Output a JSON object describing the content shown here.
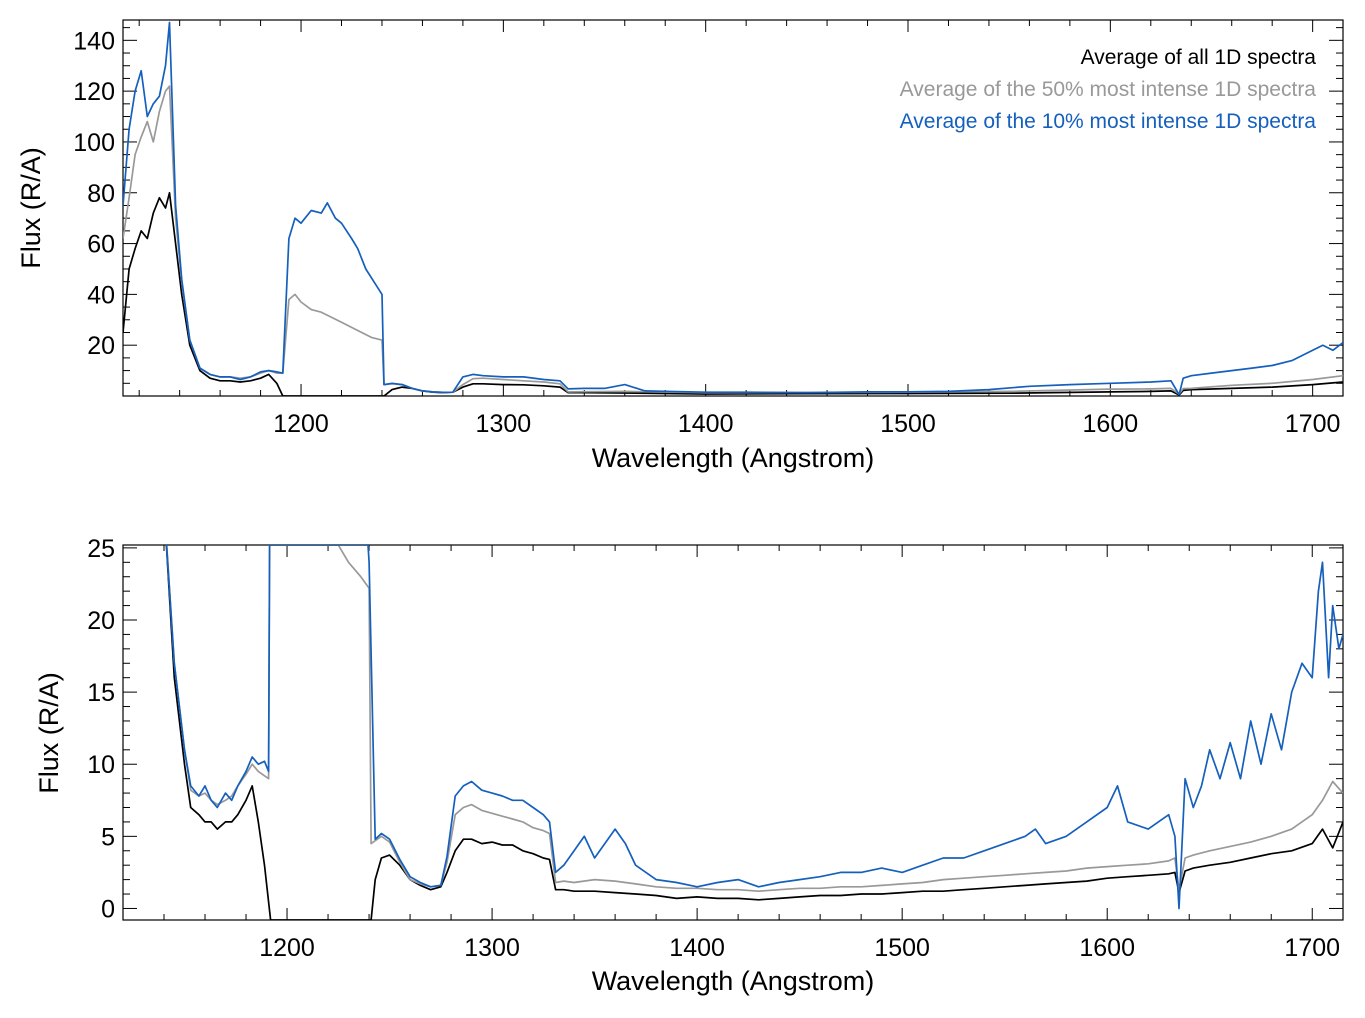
{
  "chart_data": [
    {
      "type": "line",
      "xlabel": "Wavelength (Angstrom)",
      "ylabel": "Flux (R/A)",
      "xlim": [
        1112,
        1715
      ],
      "ylim": [
        0,
        148
      ],
      "xticks": [
        1200,
        1300,
        1400,
        1500,
        1600,
        1700
      ],
      "yticks": [
        20,
        40,
        60,
        80,
        100,
        120,
        140
      ],
      "legend": "top-right",
      "grid": false,
      "series": [
        {
          "name": "Average of all 1D spectra",
          "color": "#000000",
          "x": [
            1112,
            1115,
            1118,
            1121,
            1124,
            1127,
            1130,
            1133,
            1135,
            1138,
            1141,
            1145,
            1150,
            1155,
            1160,
            1165,
            1170,
            1175,
            1180,
            1184,
            1188,
            1191,
            1241,
            1245,
            1250,
            1255,
            1260,
            1265,
            1270,
            1275,
            1280,
            1285,
            1290,
            1300,
            1310,
            1320,
            1328,
            1332,
            1340,
            1360,
            1400,
            1450,
            1500,
            1550,
            1600,
            1620,
            1630,
            1634,
            1636,
            1640,
            1660,
            1680,
            1700,
            1715
          ],
          "y": [
            25,
            50,
            58,
            65,
            62,
            72,
            78,
            74,
            80,
            60,
            40,
            20,
            10,
            7,
            6,
            6,
            5.5,
            6,
            7,
            8.5,
            5,
            0,
            0,
            2.5,
            3.5,
            3,
            2,
            1.5,
            1.3,
            1.5,
            3.5,
            4.8,
            4.8,
            4.5,
            4.4,
            4,
            3.5,
            1.3,
            1.3,
            1.2,
            0.8,
            0.9,
            1,
            1.1,
            1.6,
            1.8,
            2,
            0.4,
            2.2,
            2.5,
            3,
            3.5,
            4.5,
            5.5
          ]
        },
        {
          "name": "Average of the 50% most intense 1D spectra",
          "color": "#999999",
          "x": [
            1112,
            1115,
            1118,
            1121,
            1124,
            1127,
            1130,
            1133,
            1135,
            1138,
            1141,
            1145,
            1150,
            1155,
            1160,
            1165,
            1170,
            1175,
            1180,
            1184,
            1188,
            1191,
            1194,
            1197,
            1200,
            1205,
            1210,
            1215,
            1220,
            1225,
            1230,
            1235,
            1240,
            1241,
            1245,
            1250,
            1255,
            1260,
            1265,
            1270,
            1275,
            1280,
            1285,
            1290,
            1300,
            1310,
            1320,
            1328,
            1332,
            1340,
            1360,
            1400,
            1450,
            1500,
            1550,
            1600,
            1620,
            1630,
            1634,
            1636,
            1640,
            1660,
            1680,
            1700,
            1715
          ],
          "y": [
            62,
            78,
            95,
            102,
            108,
            100,
            112,
            120,
            122,
            70,
            45,
            22,
            11,
            8.5,
            7.5,
            7.5,
            7,
            7.5,
            9,
            10,
            9,
            9,
            38,
            40,
            37,
            34,
            33,
            31,
            29,
            27,
            25,
            23,
            22,
            4.5,
            4.8,
            4.5,
            3,
            2,
            1.6,
            1.4,
            1.5,
            4.5,
            6.8,
            7,
            6.5,
            6,
            5.5,
            4.8,
            1.6,
            1.7,
            1.8,
            1.3,
            1.4,
            1.5,
            1.8,
            2.7,
            2.8,
            3,
            0.8,
            2.9,
            3,
            4.2,
            5,
            6.5,
            8
          ]
        },
        {
          "name": "Average of the 10% most intense 1D spectra",
          "color": "#1560BD",
          "x": [
            1112,
            1115,
            1118,
            1121,
            1124,
            1127,
            1130,
            1133,
            1135,
            1138,
            1141,
            1145,
            1150,
            1155,
            1160,
            1165,
            1170,
            1175,
            1180,
            1184,
            1188,
            1191,
            1194,
            1197,
            1200,
            1205,
            1210,
            1213,
            1217,
            1220,
            1225,
            1228,
            1232,
            1236,
            1240,
            1241,
            1245,
            1250,
            1255,
            1260,
            1265,
            1270,
            1275,
            1280,
            1285,
            1290,
            1300,
            1310,
            1320,
            1328,
            1332,
            1340,
            1350,
            1360,
            1370,
            1380,
            1400,
            1420,
            1450,
            1480,
            1500,
            1520,
            1540,
            1560,
            1580,
            1600,
            1620,
            1630,
            1634,
            1636,
            1640,
            1650,
            1660,
            1670,
            1680,
            1690,
            1700,
            1705,
            1710,
            1715
          ],
          "y": [
            75,
            105,
            120,
            128,
            110,
            115,
            118,
            130,
            147,
            75,
            46,
            22,
            11,
            8.5,
            7.5,
            7.5,
            6.5,
            7.5,
            9.5,
            10,
            9.5,
            9,
            62,
            70,
            68,
            73,
            72,
            76,
            70,
            68,
            62,
            58,
            50,
            45,
            40,
            4.5,
            5,
            4.5,
            3,
            2,
            1.6,
            1.4,
            1.5,
            7.5,
            8.5,
            8,
            7.5,
            7.5,
            6.5,
            6,
            2.8,
            3,
            3,
            4.5,
            2,
            1.8,
            1.5,
            1.5,
            1.3,
            1.6,
            1.6,
            1.8,
            2.5,
            3.8,
            4.5,
            5,
            5.5,
            6,
            0.5,
            7,
            8,
            9,
            10,
            11,
            12,
            14,
            18,
            20,
            18,
            21
          ]
        }
      ]
    },
    {
      "type": "line",
      "xlabel": "Wavelength (Angstrom)",
      "ylabel": "Flux (R/A)",
      "xlim": [
        1120,
        1715
      ],
      "ylim": [
        -0.8,
        25.2
      ],
      "xticks": [
        1200,
        1300,
        1400,
        1500,
        1600,
        1700
      ],
      "yticks": [
        0,
        5,
        10,
        15,
        20,
        25
      ],
      "grid": false,
      "series": [
        {
          "name": "Average of all 1D spectra",
          "color": "#000000",
          "x": [
            1140,
            1145,
            1150,
            1153,
            1157,
            1160,
            1163,
            1166,
            1170,
            1173,
            1176,
            1180,
            1183,
            1186,
            1189,
            1192,
            1241,
            1243,
            1246,
            1250,
            1255,
            1260,
            1265,
            1270,
            1275,
            1278,
            1282,
            1286,
            1290,
            1295,
            1300,
            1305,
            1310,
            1315,
            1320,
            1325,
            1328,
            1331,
            1335,
            1340,
            1350,
            1360,
            1370,
            1380,
            1390,
            1400,
            1410,
            1420,
            1430,
            1440,
            1450,
            1460,
            1470,
            1480,
            1490,
            1500,
            1510,
            1520,
            1530,
            1540,
            1550,
            1560,
            1570,
            1580,
            1590,
            1600,
            1610,
            1620,
            1630,
            1633,
            1635,
            1638,
            1642,
            1650,
            1660,
            1670,
            1680,
            1690,
            1700,
            1705,
            1710,
            1715
          ],
          "y": [
            28,
            16,
            10,
            7,
            6.5,
            6,
            6,
            5.5,
            6,
            6,
            6.5,
            7.5,
            8.5,
            6,
            3,
            -0.8,
            -0.8,
            2,
            3.5,
            3.7,
            3,
            2,
            1.6,
            1.3,
            1.5,
            2.5,
            4,
            4.8,
            4.8,
            4.5,
            4.6,
            4.4,
            4.4,
            4,
            3.8,
            3.5,
            3.4,
            1.3,
            1.3,
            1.2,
            1.2,
            1.1,
            1,
            0.9,
            0.7,
            0.8,
            0.7,
            0.7,
            0.6,
            0.7,
            0.8,
            0.9,
            0.9,
            1,
            1,
            1.1,
            1.2,
            1.2,
            1.3,
            1.4,
            1.5,
            1.6,
            1.7,
            1.8,
            1.9,
            2.1,
            2.2,
            2.3,
            2.4,
            2.5,
            1.1,
            2.6,
            2.8,
            3,
            3.2,
            3.5,
            3.8,
            4,
            4.5,
            5.5,
            4.2,
            6
          ]
        },
        {
          "name": "Average of the 50% most intense 1D spectra",
          "color": "#999999",
          "x": [
            1140,
            1145,
            1150,
            1153,
            1157,
            1160,
            1163,
            1166,
            1170,
            1173,
            1176,
            1180,
            1183,
            1186,
            1189,
            1191,
            1191.5,
            1225,
            1230,
            1236,
            1240,
            1241,
            1243,
            1246,
            1250,
            1255,
            1260,
            1265,
            1270,
            1275,
            1278,
            1282,
            1286,
            1290,
            1295,
            1300,
            1305,
            1310,
            1315,
            1320,
            1325,
            1328,
            1331,
            1335,
            1340,
            1350,
            1360,
            1370,
            1380,
            1390,
            1400,
            1410,
            1420,
            1430,
            1440,
            1450,
            1460,
            1470,
            1480,
            1490,
            1500,
            1510,
            1520,
            1530,
            1540,
            1550,
            1560,
            1570,
            1580,
            1590,
            1600,
            1610,
            1620,
            1630,
            1633,
            1635,
            1638,
            1642,
            1650,
            1660,
            1670,
            1680,
            1690,
            1700,
            1705,
            1710,
            1715
          ],
          "y": [
            28,
            17,
            11,
            8.2,
            7.8,
            8,
            7.5,
            7.2,
            7.5,
            7.8,
            8.5,
            9.3,
            10,
            9.5,
            9.2,
            9,
            25.2,
            25.2,
            24,
            23,
            22.2,
            4.5,
            4.7,
            5,
            4.6,
            3.2,
            2,
            1.7,
            1.5,
            1.6,
            3.2,
            6.5,
            7,
            7.2,
            6.8,
            6.6,
            6.4,
            6.2,
            6,
            5.6,
            5.4,
            5.2,
            1.8,
            1.9,
            1.8,
            2,
            1.9,
            1.7,
            1.5,
            1.4,
            1.4,
            1.3,
            1.3,
            1.2,
            1.3,
            1.4,
            1.4,
            1.5,
            1.5,
            1.6,
            1.7,
            1.8,
            2,
            2.1,
            2.2,
            2.3,
            2.4,
            2.5,
            2.6,
            2.8,
            2.9,
            3,
            3.1,
            3.3,
            3.5,
            1.3,
            3.5,
            3.7,
            4,
            4.3,
            4.6,
            5,
            5.5,
            6.5,
            7.5,
            8.8,
            8
          ]
        },
        {
          "name": "Average of the 10% most intense 1D spectra",
          "color": "#1560BD",
          "x": [
            1140,
            1145,
            1150,
            1153,
            1157,
            1160,
            1163,
            1166,
            1170,
            1173,
            1176,
            1180,
            1183,
            1186,
            1189,
            1191,
            1191.5,
            1239.5,
            1240,
            1243,
            1246,
            1250,
            1255,
            1260,
            1265,
            1270,
            1275,
            1278,
            1282,
            1286,
            1290,
            1295,
            1300,
            1305,
            1310,
            1315,
            1320,
            1325,
            1328,
            1331,
            1335,
            1340,
            1345,
            1350,
            1355,
            1360,
            1365,
            1370,
            1380,
            1390,
            1400,
            1410,
            1420,
            1430,
            1440,
            1450,
            1460,
            1470,
            1480,
            1490,
            1500,
            1510,
            1520,
            1530,
            1540,
            1550,
            1560,
            1565,
            1570,
            1580,
            1590,
            1600,
            1605,
            1610,
            1620,
            1630,
            1633,
            1635,
            1638,
            1642,
            1646,
            1650,
            1655,
            1660,
            1665,
            1670,
            1675,
            1680,
            1685,
            1690,
            1695,
            1700,
            1703,
            1705,
            1708,
            1710,
            1713,
            1715
          ],
          "y": [
            28,
            17,
            11,
            8.5,
            7.8,
            8.5,
            7.5,
            7,
            8,
            7.5,
            8.5,
            9.5,
            10.5,
            10,
            10.2,
            9.5,
            25.2,
            25.2,
            24,
            4.8,
            5.2,
            4.8,
            3.4,
            2.2,
            1.8,
            1.5,
            1.6,
            3.6,
            7.8,
            8.5,
            8.8,
            8.2,
            8,
            7.8,
            7.5,
            7.5,
            7,
            6.5,
            6,
            2.5,
            3,
            4,
            5,
            3.5,
            4.5,
            5.5,
            4.5,
            3,
            2,
            1.8,
            1.5,
            1.8,
            2,
            1.5,
            1.8,
            2,
            2.2,
            2.5,
            2.5,
            2.8,
            2.5,
            3,
            3.5,
            3.5,
            4,
            4.5,
            5,
            5.5,
            4.5,
            5,
            6,
            7,
            8.5,
            6,
            5.5,
            6.5,
            5,
            0,
            9,
            7,
            8.5,
            11,
            9,
            11.5,
            9,
            13,
            10,
            13.5,
            11,
            15,
            17,
            16,
            22,
            24,
            16,
            21,
            18,
            19
          ]
        }
      ]
    }
  ]
}
